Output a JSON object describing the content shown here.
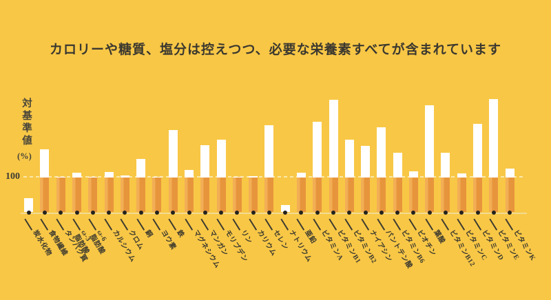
{
  "title": "カロリーや糖質、塩分は控えつつ、必要な栄養素すべてが含まれています",
  "chart_data": {
    "type": "bar",
    "title": "カロリーや糖質、塩分は控えつつ、必要な栄養素すべてが含まれています",
    "ylabel": "対基準値(%)",
    "ylabel_main": "対基準値",
    "ylabel_unit": "(%)",
    "xlabel": "",
    "reference_line": {
      "value": 100,
      "label": "100"
    },
    "ylim": [
      0,
      340
    ],
    "grid": false,
    "legend": "none",
    "categories": [
      "炭水化物",
      "食物繊維",
      "タンパク質",
      "ω-3\n脂肪酸",
      "ω-6\n脂肪酸",
      "カルシウム",
      "クロム",
      "銅",
      "ヨウ素",
      "鉄",
      "マグネシウム",
      "マンガン",
      "モリブデン",
      "リン",
      "カリウム",
      "セレン",
      "ナトリウム",
      "亜鉛",
      "ビタミンA",
      "ビタミンB1",
      "ビタミンB2",
      "ナイアシン",
      "パントテン酸",
      "ビタミンB6",
      "ビオチン",
      "葉酸",
      "ビタミンB12",
      "ビタミンC",
      "ビタミンD",
      "ビタミンE",
      "ビタミンK"
    ],
    "values": [
      40,
      181,
      102,
      113,
      101,
      115,
      106,
      152,
      102,
      236,
      122,
      192,
      207,
      101,
      104,
      250,
      21,
      113,
      258,
      321,
      207,
      189,
      244,
      170,
      117,
      306,
      170,
      112,
      253,
      324,
      125
    ],
    "bar_rule": "values at or above 100 drawn orange up to the 100 line with white overflow above; values below 100 drawn as short white bars",
    "colors": {
      "background": "#F8C746",
      "bar_below_100_zone": "#E7953C",
      "bar_below_100_zone_highlight": "#F2AE55",
      "bar_overflow": "#FFFFFF",
      "reference_dash": "#FBE8AB",
      "baseline": "#F3DB94",
      "text": "#3B382F",
      "dot": "#23221E"
    }
  }
}
